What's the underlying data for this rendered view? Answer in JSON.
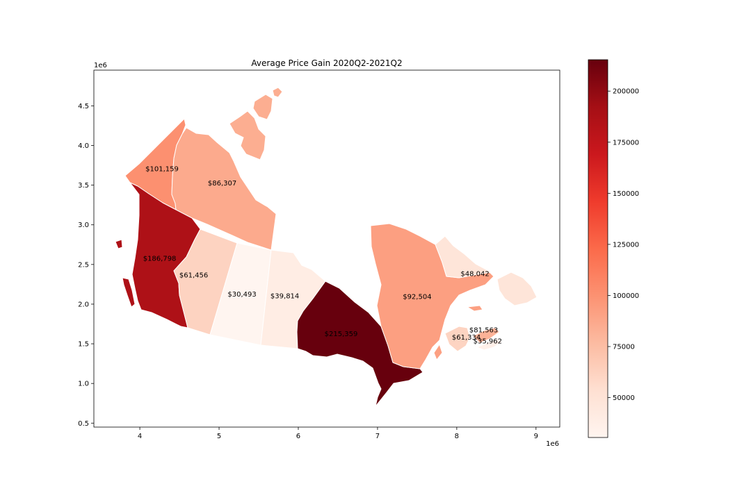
{
  "chart_data": {
    "type": "choropleth",
    "title": "Average Price Gain 2020Q2-2021Q2",
    "xlabel": "",
    "ylabel": "",
    "x_offset_label": "1e6",
    "y_offset_label": "1e6",
    "xlim": [
      3.42,
      9.3
    ],
    "ylim": [
      0.45,
      4.95
    ],
    "x_ticks": [
      {
        "v": 4,
        "label": "4"
      },
      {
        "v": 5,
        "label": "5"
      },
      {
        "v": 6,
        "label": "6"
      },
      {
        "v": 7,
        "label": "7"
      },
      {
        "v": 8,
        "label": "8"
      },
      {
        "v": 9,
        "label": "9"
      }
    ],
    "y_ticks": [
      {
        "v": 0.5,
        "label": "0.5"
      },
      {
        "v": 1.0,
        "label": "1.0"
      },
      {
        "v": 1.5,
        "label": "1.5"
      },
      {
        "v": 2.0,
        "label": "2.0"
      },
      {
        "v": 2.5,
        "label": "2.5"
      },
      {
        "v": 3.0,
        "label": "3.0"
      },
      {
        "v": 3.5,
        "label": "3.5"
      },
      {
        "v": 4.0,
        "label": "4.0"
      },
      {
        "v": 4.5,
        "label": "4.5"
      }
    ],
    "colormap": "Reds",
    "value_range": [
      30493,
      215359
    ],
    "colorbar_ticks": [
      {
        "v": 50000,
        "label": "50000"
      },
      {
        "v": 75000,
        "label": "75000"
      },
      {
        "v": 100000,
        "label": "100000"
      },
      {
        "v": 125000,
        "label": "125000"
      },
      {
        "v": 150000,
        "label": "150000"
      },
      {
        "v": 175000,
        "label": "175000"
      },
      {
        "v": 200000,
        "label": "200000"
      }
    ],
    "regions": [
      {
        "value": 101159,
        "label": "$101,159",
        "x": 4.28,
        "y": 3.71
      },
      {
        "value": 86307,
        "label": "$86,307",
        "x": 5.04,
        "y": 3.53
      },
      {
        "value": 186798,
        "label": "$186,798",
        "x": 4.25,
        "y": 2.58
      },
      {
        "value": 61456,
        "label": "$61,456",
        "x": 4.68,
        "y": 2.37
      },
      {
        "value": 30493,
        "label": "$30,493",
        "x": 5.29,
        "y": 2.13
      },
      {
        "value": 39814,
        "label": "$39,814",
        "x": 5.83,
        "y": 2.11
      },
      {
        "value": 215359,
        "label": "$215,359",
        "x": 6.54,
        "y": 1.63
      },
      {
        "value": 92504,
        "label": "$92,504",
        "x": 7.5,
        "y": 2.1
      },
      {
        "value": 48042,
        "label": "$48,042",
        "x": 8.23,
        "y": 2.39
      },
      {
        "value": 81563,
        "label": "$81,563",
        "x": 8.34,
        "y": 1.68
      },
      {
        "value": 61334,
        "label": "$61,334",
        "x": 8.12,
        "y": 1.59
      },
      {
        "value": 35962,
        "label": "$35,962",
        "x": 8.39,
        "y": 1.54
      }
    ]
  }
}
